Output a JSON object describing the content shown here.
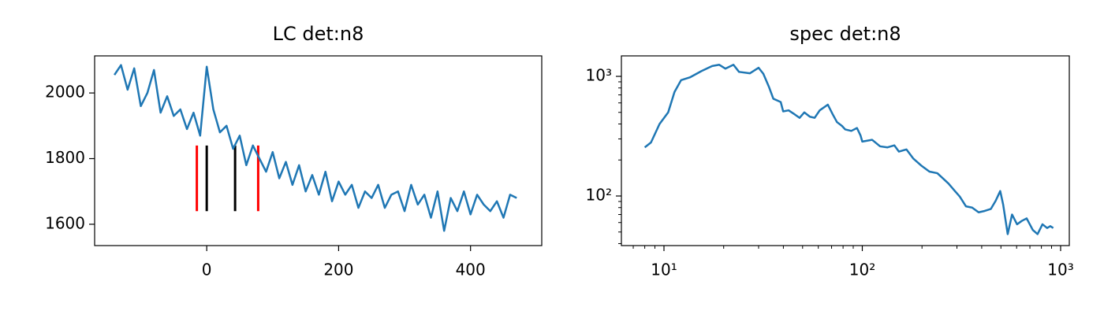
{
  "chart_data": [
    {
      "type": "line",
      "title": "LC det:n8",
      "x": [
        -140,
        -130,
        -120,
        -110,
        -100,
        -90,
        -80,
        -70,
        -60,
        -50,
        -40,
        -30,
        -20,
        -10,
        0,
        10,
        20,
        30,
        40,
        50,
        60,
        70,
        80,
        90,
        100,
        110,
        120,
        130,
        140,
        150,
        160,
        170,
        180,
        190,
        200,
        210,
        220,
        230,
        240,
        250,
        260,
        270,
        280,
        290,
        300,
        310,
        320,
        330,
        340,
        350,
        360,
        370,
        380,
        390,
        400,
        410,
        420,
        430,
        440,
        450,
        460,
        470
      ],
      "series": [
        {
          "color": "#1f77b4",
          "values": [
            2055,
            2085,
            2010,
            2075,
            1960,
            2000,
            2070,
            1940,
            1990,
            1930,
            1950,
            1890,
            1940,
            1870,
            2080,
            1950,
            1880,
            1900,
            1830,
            1870,
            1780,
            1840,
            1800,
            1760,
            1820,
            1740,
            1790,
            1720,
            1780,
            1700,
            1750,
            1690,
            1760,
            1670,
            1730,
            1690,
            1720,
            1650,
            1700,
            1680,
            1720,
            1650,
            1690,
            1700,
            1640,
            1720,
            1660,
            1690,
            1620,
            1700,
            1580,
            1680,
            1640,
            1700,
            1630,
            1690,
            1660,
            1640,
            1670,
            1620,
            1690,
            1680
          ]
        }
      ],
      "vlines": [
        {
          "x": -15,
          "ymin": 1640,
          "ymax": 1840,
          "color": "#ff0000"
        },
        {
          "x": 0,
          "ymin": 1640,
          "ymax": 1840,
          "color": "#000000"
        },
        {
          "x": 43,
          "ymin": 1640,
          "ymax": 1840,
          "color": "#000000"
        },
        {
          "x": 78,
          "ymin": 1640,
          "ymax": 1840,
          "color": "#ff0000"
        }
      ],
      "xlim": [
        -170,
        508
      ],
      "ylim": [
        1535,
        2113
      ],
      "xticks": [
        0,
        200,
        400
      ],
      "yticks": [
        1600,
        1800,
        2000
      ]
    },
    {
      "type": "line",
      "title": "spec det:n8",
      "xscale": "log",
      "yscale": "log",
      "x": [
        8,
        8.6,
        9.5,
        10.5,
        11.3,
        12.2,
        13.5,
        15.5,
        17.5,
        19,
        20.4,
        22.4,
        23.9,
        27.1,
        30,
        31.7,
        33.8,
        35.6,
        38.8,
        39.9,
        42.5,
        45.7,
        48.3,
        51,
        54.4,
        57.5,
        61,
        67,
        71,
        74.5,
        79,
        82,
        88,
        94,
        98,
        100,
        112,
        123,
        134,
        145,
        153,
        167,
        181,
        198,
        218,
        239,
        253,
        272,
        293,
        310,
        333,
        358,
        386,
        414,
        445,
        470,
        496,
        513,
        541,
        569,
        603,
        638,
        674,
        724,
        765,
        810,
        855,
        887,
        918
      ],
      "series": [
        {
          "color": "#1f77b4",
          "values": [
            255,
            280,
            400,
            500,
            740,
            930,
            980,
            1110,
            1220,
            1250,
            1160,
            1250,
            1090,
            1060,
            1180,
            1050,
            820,
            650,
            610,
            510,
            520,
            480,
            450,
            500,
            460,
            450,
            520,
            580,
            480,
            415,
            385,
            360,
            350,
            370,
            320,
            285,
            295,
            260,
            255,
            265,
            235,
            245,
            205,
            180,
            160,
            155,
            142,
            127,
            110,
            99,
            82,
            80,
            73,
            75,
            78,
            91,
            110,
            85,
            48,
            70,
            58,
            62,
            65,
            52,
            48,
            58,
            54,
            56,
            54
          ]
        }
      ],
      "xlim": [
        6.1,
        1106
      ],
      "ylim": [
        38.5,
        1483
      ],
      "xticks": [
        {
          "value": 10,
          "label": "10¹"
        },
        {
          "value": 100,
          "label": "10²"
        },
        {
          "value": 1000,
          "label": "10³"
        }
      ],
      "yticks": [
        {
          "value": 100,
          "label": "10²"
        },
        {
          "value": 1000,
          "label": "10³"
        }
      ],
      "xticks_minor": [
        7,
        8,
        9,
        20,
        30,
        40,
        50,
        60,
        70,
        80,
        90,
        200,
        300,
        400,
        500,
        600,
        700,
        800,
        900
      ],
      "yticks_minor": [
        40,
        50,
        60,
        70,
        80,
        90,
        200,
        300,
        400,
        500,
        600,
        700,
        800,
        900
      ]
    }
  ]
}
